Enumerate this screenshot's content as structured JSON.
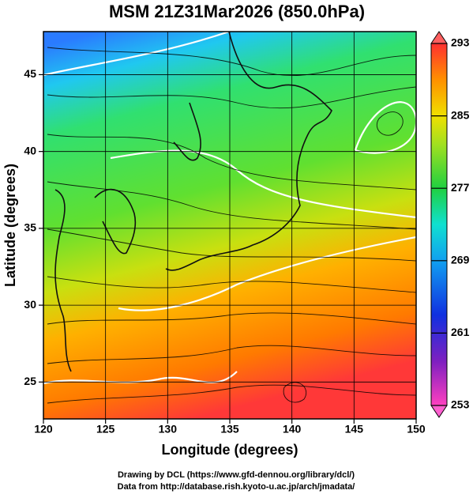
{
  "chart_data": {
    "type": "map",
    "title": "MSM 21Z31Mar2026 (850.0hPa)",
    "xlabel": "Longitude (degrees)",
    "ylabel": "Latitude  (degrees)",
    "xlim": [
      120,
      150
    ],
    "xticks": [
      120,
      125,
      130,
      135,
      140,
      145,
      150
    ],
    "ylim": [
      22.6,
      47.8
    ],
    "yticks": [
      25,
      30,
      35,
      40,
      45
    ],
    "grid": true,
    "colorbar": {
      "lim": [
        253,
        293
      ],
      "ticks": [
        253,
        261,
        269,
        277,
        285,
        293
      ]
    }
  },
  "credits": [
    "Drawing by DCL (https://www.gfd-dennou.org/library/dcl/)",
    "Data from http://database.rish.kyoto-u.ac.jp/arch/jmadata/"
  ]
}
